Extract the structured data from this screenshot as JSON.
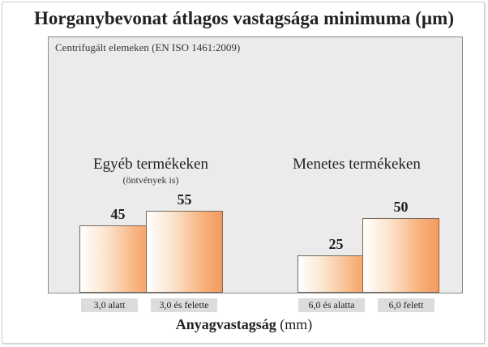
{
  "chart_data": {
    "type": "bar",
    "title": "Horganybevonat átlagos vastagsága minimuma (µm)",
    "subtitle": "Centrifugált elemeken (EN ISO 1461:2009)",
    "xlabel_bold": "Anyagvastagság",
    "xlabel_unit": "(mm)",
    "groups": [
      {
        "title": "Egyéb termékeken",
        "note": "(öntvények is)",
        "categories": [
          "3,0 alatt",
          "3,0 és felette"
        ],
        "values": [
          45,
          55
        ]
      },
      {
        "title": "Menetes termékeken",
        "note": "",
        "categories": [
          "6,0 és alatta",
          "6,0 felett"
        ],
        "values": [
          25,
          50
        ]
      }
    ],
    "legend": "none",
    "grid": false
  }
}
